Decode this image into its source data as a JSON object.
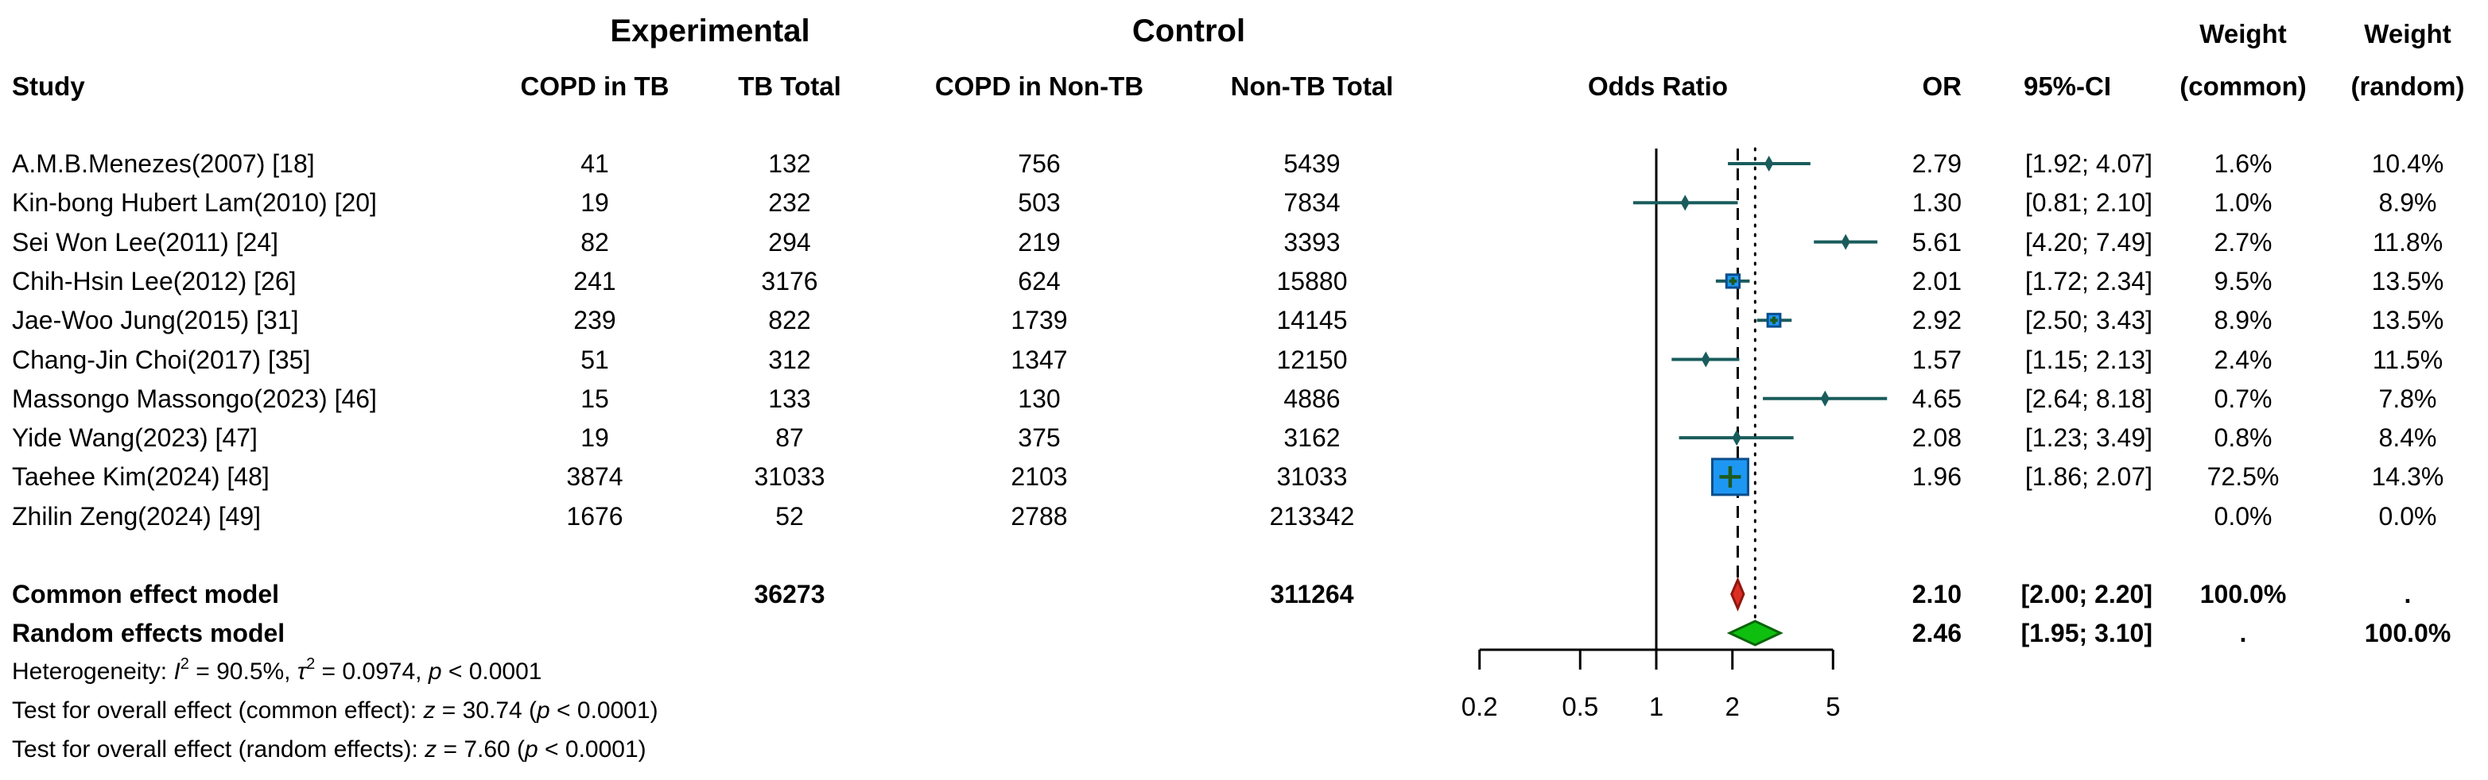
{
  "header": {
    "group_experimental": "Experimental",
    "group_control": "Control",
    "col_study": "Study",
    "col_copd_in_tb": "COPD in TB",
    "col_tb_total": "TB Total",
    "col_copd_in_nontb": "COPD in Non-TB",
    "col_nontb_total": "Non-TB Total",
    "col_odds_ratio": "Odds Ratio",
    "col_or": "OR",
    "col_ci": "95%-CI",
    "col_weight": "Weight",
    "col_weight_common_sub": "(common)",
    "col_weight_random_sub": "(random)"
  },
  "chart_data": {
    "type": "forest",
    "x_scale": "log",
    "axis_ticks": [
      0.2,
      0.5,
      1,
      2,
      5
    ],
    "axis_tick_labels": [
      "0.2",
      "0.5",
      "1",
      "2",
      "5"
    ],
    "reference_line": 1,
    "dashed_line_at": 2.1,
    "dotted_line_at": 2.46,
    "studies": [
      {
        "name": "A.M.B.Menezes(2007) [18]",
        "copd_in_tb": "41",
        "tb_total": "132",
        "copd_in_nontb": "756",
        "nontb_total": "5439",
        "or": 2.79,
        "ci_low": 1.92,
        "ci_high": 4.07,
        "or_text": "2.79",
        "ci_text": "[1.92; 4.07]",
        "weight_common": "1.6%",
        "weight_random": "10.4%",
        "wc": 1.6
      },
      {
        "name": "Kin-bong Hubert Lam(2010) [20]",
        "copd_in_tb": "19",
        "tb_total": "232",
        "copd_in_nontb": "503",
        "nontb_total": "7834",
        "or": 1.3,
        "ci_low": 0.81,
        "ci_high": 2.1,
        "or_text": "1.30",
        "ci_text": "[0.81; 2.10]",
        "weight_common": "1.0%",
        "weight_random": "8.9%",
        "wc": 1.0
      },
      {
        "name": "Sei Won Lee(2011) [24]",
        "copd_in_tb": "82",
        "tb_total": "294",
        "copd_in_nontb": "219",
        "nontb_total": "3393",
        "or": 5.61,
        "ci_low": 4.2,
        "ci_high": 7.49,
        "or_text": "5.61",
        "ci_text": "[4.20; 7.49]",
        "weight_common": "2.7%",
        "weight_random": "11.8%",
        "wc": 2.7
      },
      {
        "name": "Chih-Hsin Lee(2012) [26]",
        "copd_in_tb": "241",
        "tb_total": "3176",
        "copd_in_nontb": "624",
        "nontb_total": "15880",
        "or": 2.01,
        "ci_low": 1.72,
        "ci_high": 2.34,
        "or_text": "2.01",
        "ci_text": "[1.72; 2.34]",
        "weight_common": "9.5%",
        "weight_random": "13.5%",
        "wc": 9.5
      },
      {
        "name": "Jae-Woo Jung(2015) [31]",
        "copd_in_tb": "239",
        "tb_total": "822",
        "copd_in_nontb": "1739",
        "nontb_total": "14145",
        "or": 2.92,
        "ci_low": 2.5,
        "ci_high": 3.43,
        "or_text": "2.92",
        "ci_text": "[2.50; 3.43]",
        "weight_common": "8.9%",
        "weight_random": "13.5%",
        "wc": 8.9
      },
      {
        "name": "Chang-Jin Choi(2017) [35]",
        "copd_in_tb": "51",
        "tb_total": "312",
        "copd_in_nontb": "1347",
        "nontb_total": "12150",
        "or": 1.57,
        "ci_low": 1.15,
        "ci_high": 2.13,
        "or_text": "1.57",
        "ci_text": "[1.15; 2.13]",
        "weight_common": "2.4%",
        "weight_random": "11.5%",
        "wc": 2.4
      },
      {
        "name": "Massongo Massongo(2023) [46]",
        "copd_in_tb": "15",
        "tb_total": "133",
        "copd_in_nontb": "130",
        "nontb_total": "4886",
        "or": 4.65,
        "ci_low": 2.64,
        "ci_high": 8.18,
        "or_text": "4.65",
        "ci_text": "[2.64; 8.18]",
        "weight_common": "0.7%",
        "weight_random": "7.8%",
        "wc": 0.7
      },
      {
        "name": "Yide Wang(2023) [47]",
        "copd_in_tb": "19",
        "tb_total": "87",
        "copd_in_nontb": "375",
        "nontb_total": "3162",
        "or": 2.08,
        "ci_low": 1.23,
        "ci_high": 3.49,
        "or_text": "2.08",
        "ci_text": "[1.23; 3.49]",
        "weight_common": "0.8%",
        "weight_random": "8.4%",
        "wc": 0.8
      },
      {
        "name": "Taehee Kim(2024) [48]",
        "copd_in_tb": "3874",
        "tb_total": "31033",
        "copd_in_nontb": "2103",
        "nontb_total": "31033",
        "or": 1.96,
        "ci_low": 1.86,
        "ci_high": 2.07,
        "or_text": "1.96",
        "ci_text": "[1.86; 2.07]",
        "weight_common": "72.5%",
        "weight_random": "14.3%",
        "wc": 72.5
      },
      {
        "name": "Zhilin Zeng(2024) [49]",
        "copd_in_tb": "1676",
        "tb_total": "52",
        "copd_in_nontb": "2788",
        "nontb_total": "213342",
        "or": null,
        "ci_low": null,
        "ci_high": null,
        "or_text": "",
        "ci_text": "",
        "weight_common": "0.0%",
        "weight_random": "0.0%",
        "wc": 0
      }
    ],
    "common_effect": {
      "label": "Common effect model",
      "tb_total": "36273",
      "nontb_total": "311264",
      "or": 2.1,
      "ci_low": 2.0,
      "ci_high": 2.2,
      "or_text": "2.10",
      "ci_text": "[2.00; 2.20]",
      "weight_common": "100.0%",
      "weight_random": "."
    },
    "random_effects": {
      "label": "Random effects model",
      "or": 2.46,
      "ci_low": 1.95,
      "ci_high": 3.1,
      "or_text": "2.46",
      "ci_text": "[1.95; 3.10]",
      "weight_common": ".",
      "weight_random": "100.0%"
    },
    "heterogeneity_plain": "Heterogeneity: I2 = 90.5%, tau2 = 0.0974, p < 0.0001",
    "test_common_plain": "Test for overall effect (common effect): z = 30.74 (p < 0.0001)",
    "test_random_plain": "Test for overall effect (random effects): z = 7.60 (p < 0.0001)"
  },
  "stats_segments": {
    "heterogeneity": [
      {
        "t": "Heterogeneity: "
      },
      {
        "t": "I",
        "i": true
      },
      {
        "t": "2",
        "sup": true
      },
      {
        "t": " = 90.5%, "
      },
      {
        "t": "τ",
        "i": true
      },
      {
        "t": "2",
        "sup": true
      },
      {
        "t": " = 0.0974, "
      },
      {
        "t": "p",
        "i": true
      },
      {
        "t": " < 0.0001"
      }
    ],
    "test_common": [
      {
        "t": "Test for overall effect (common effect): "
      },
      {
        "t": "z",
        "i": true
      },
      {
        "t": " = 30.74 ("
      },
      {
        "t": "p",
        "i": true
      },
      {
        "t": " < 0.0001)"
      }
    ],
    "test_random": [
      {
        "t": "Test for overall effect (random effects): "
      },
      {
        "t": "z",
        "i": true
      },
      {
        "t": " = 7.60 ("
      },
      {
        "t": "p",
        "i": true
      },
      {
        "t": " < 0.0001)"
      }
    ]
  },
  "colors": {
    "text": "#000000",
    "axis_line": "#000000",
    "ci_line": "#1a5c5c",
    "tiny_marker": "#1a5c5c",
    "square_fill": "#1e97f3",
    "square_border": "#0a4d8c",
    "square_cross": "#1e5a1e",
    "common_diamond_fill": "#dc2f24",
    "common_diamond_border": "#8f1710",
    "random_diamond_fill": "#0fbf0f",
    "random_diamond_border": "#0a640a"
  }
}
